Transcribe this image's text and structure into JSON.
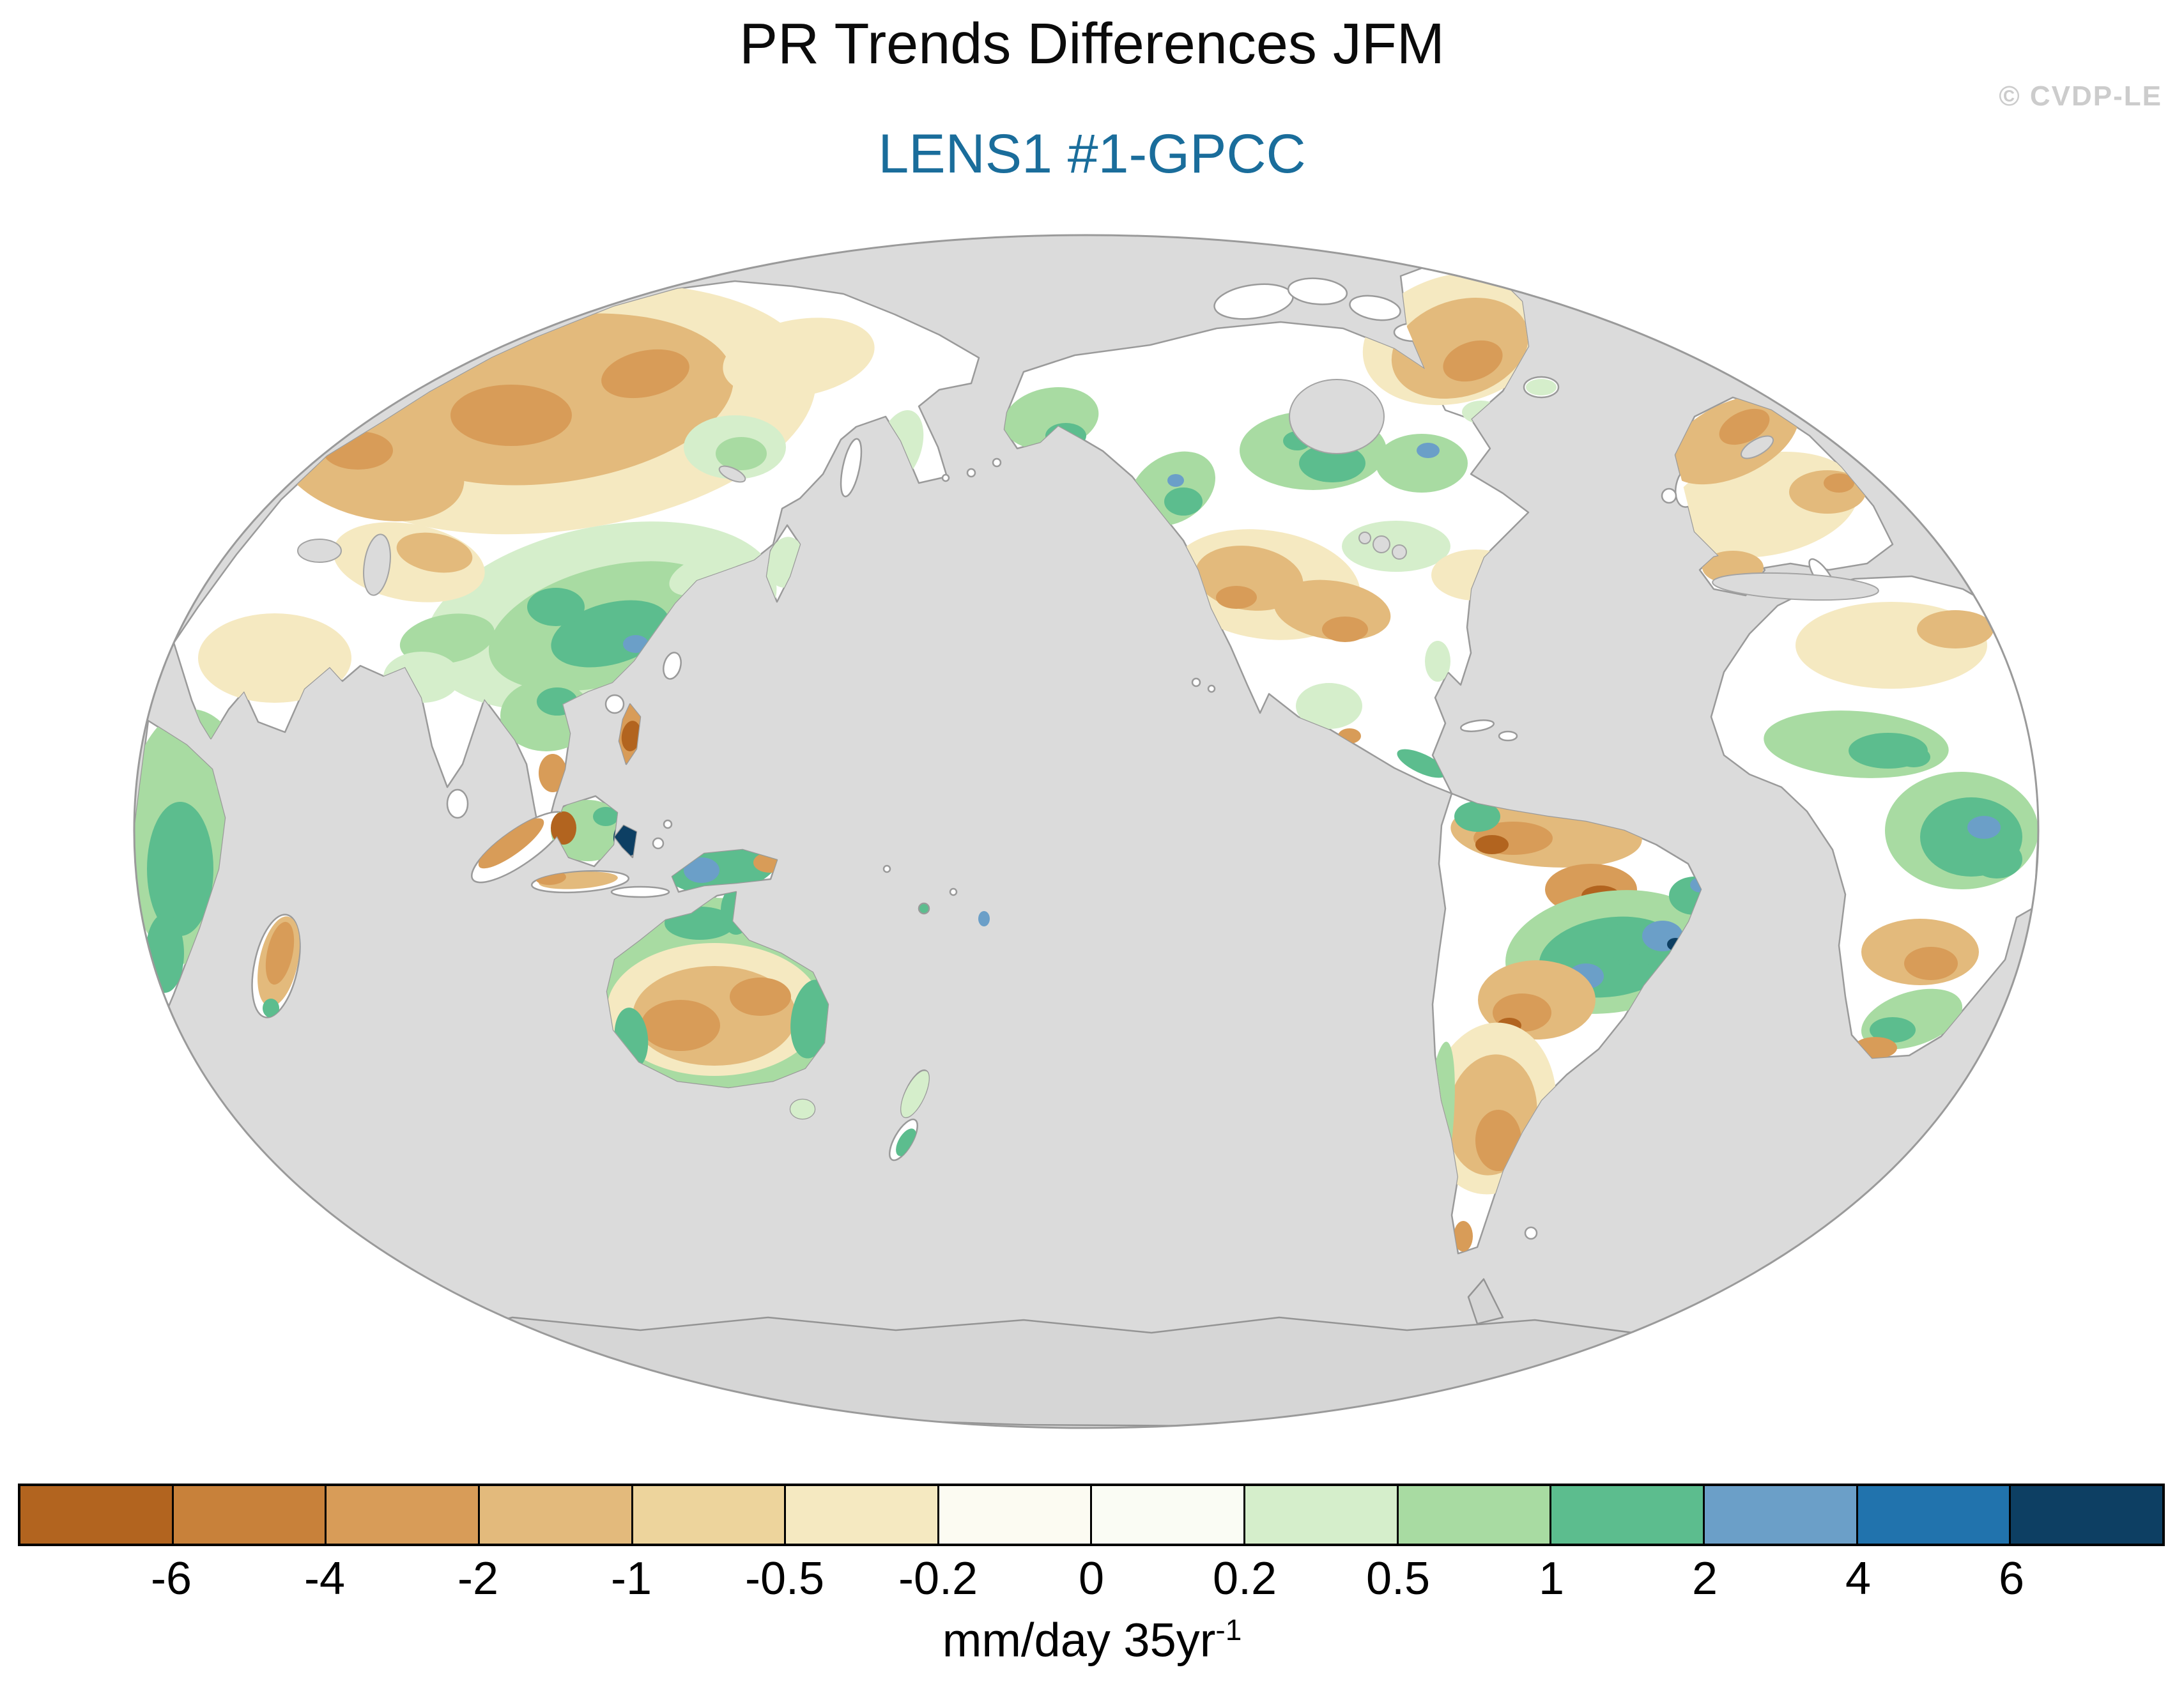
{
  "title": {
    "text": "PR Trends Differences JFM"
  },
  "subtitle": {
    "text": "LENS1 #1-GPCC",
    "color": "#1a6d9b"
  },
  "watermark": {
    "text": "© CVDP-LE"
  },
  "colorbar": {
    "tick_labels": [
      "-6",
      "-4",
      "-2",
      "-1",
      "-0.5",
      "-0.2",
      "0",
      "0.2",
      "0.5",
      "1",
      "2",
      "4",
      "6"
    ],
    "colors": [
      "#b2641f",
      "#c8813a",
      "#d89c58",
      "#e3ba7c",
      "#edd49c",
      "#f5e9c1",
      "#fcfbf2",
      "#fafcf4",
      "#d5eecb",
      "#a8dba2",
      "#5cbd8e",
      "#6b9fc8",
      "#2173ad",
      "#0d3f63"
    ],
    "unit_text": "mm/day 35yr",
    "unit_exponent": "-1"
  },
  "chart_data": {
    "type": "heatmap",
    "subtype": "filled-contour world map",
    "projection": "Winkel-tripel-style oval, Pacific-centered",
    "title": "PR Trends Differences JFM",
    "panel": "LENS1 #1-GPCC",
    "variable": "Precipitation trend difference (LENS1 ensemble member #1 minus GPCC observations), JFM season",
    "units": "mm/day 35yr⁻¹",
    "contour_levels": [
      -6,
      -4,
      -2,
      -1,
      -0.5,
      -0.2,
      0,
      0.2,
      0.5,
      1,
      2,
      4,
      6
    ],
    "palette": [
      "#b2641f",
      "#c8813a",
      "#d89c58",
      "#e3ba7c",
      "#edd49c",
      "#f5e9c1",
      "#fcfbf2",
      "#fafcf4",
      "#d5eecb",
      "#a8dba2",
      "#5cbd8e",
      "#6b9fc8",
      "#2173ad",
      "#0d3f63"
    ],
    "ocean_no_data_color": "#dbdbdb",
    "land_near_zero_color": "#ffffff",
    "notable_features": [
      "Strong positive differences (1 to >4) over central and eastern South America with embedded blue-gray cells",
      "Mixed strong anomalies over the Maritime Continent including a dark navy (>6) spot near Sulawesi",
      "Negative (tan/orange) band across western Siberia and eastern Europe/Scandinavia",
      "Positive (green) region over the Tibetan Plateau and southwest China",
      "Australia shows a green coastal ring with tan/orange negative interior",
      "Negative differences over Greenland; green positives over Alaska, western and eastern Canada",
      "Central US and northern Mexico mostly weak negative (tan)",
      "Green positive band over the Sahel and central Africa with blue-gray cells; negative patches in southern Africa interior and Madagascar",
      "Northern South America coast and Argentina negative (orange); Chilean coast positive (green strip)",
      "Gray areas (ocean, Antarctica) indicate no data"
    ]
  }
}
